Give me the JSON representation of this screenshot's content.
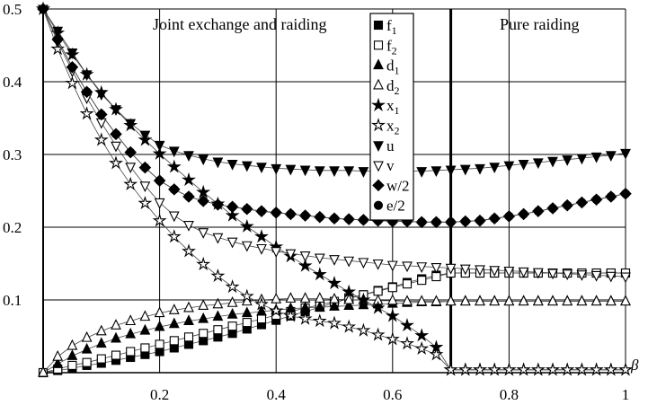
{
  "chart_data": {
    "type": "scatter",
    "xlabel": "β",
    "ylabel": "",
    "xlim": [
      0,
      1
    ],
    "ylim": [
      0,
      0.5
    ],
    "x_ticks": [
      0.2,
      0.4,
      0.6,
      0.8,
      1
    ],
    "x_tick_labels": [
      "0.2",
      "0.4",
      "0.6",
      "0.8",
      "1"
    ],
    "y_ticks": [
      0.1,
      0.2,
      0.3,
      0.4,
      0.5
    ],
    "y_tick_labels": [
      "0.1",
      "0.2",
      "0.3",
      "0.4",
      "0.5"
    ],
    "grid": true,
    "legend_position": "top-center",
    "regions": [
      {
        "label": "Joint exchange and raiding"
      },
      {
        "label": "Pure raiding"
      }
    ],
    "boundary_x": 0.7,
    "x": [
      0.0,
      0.025,
      0.05,
      0.075,
      0.1,
      0.125,
      0.15,
      0.175,
      0.2,
      0.225,
      0.25,
      0.275,
      0.3,
      0.325,
      0.35,
      0.375,
      0.4,
      0.425,
      0.45,
      0.475,
      0.5,
      0.525,
      0.55,
      0.575,
      0.6,
      0.625,
      0.65,
      0.675,
      0.7,
      0.725,
      0.75,
      0.775,
      0.8,
      0.825,
      0.85,
      0.875,
      0.9,
      0.925,
      0.95,
      0.975,
      1.0
    ],
    "series": [
      {
        "name": "f1",
        "marker": "square-filled",
        "values": [
          0,
          0.003,
          0.006,
          0.01,
          0.013,
          0.017,
          0.021,
          0.025,
          0.029,
          0.034,
          0.039,
          0.044,
          0.049,
          0.054,
          0.06,
          0.066,
          0.072,
          0.078,
          0.084,
          0.09,
          0.096,
          0.102,
          0.107,
          0.113,
          0.118,
          0.124,
          0.129,
          0.134,
          0.137,
          0.137,
          0.137,
          0.137,
          0.137,
          0.137,
          0.137,
          0.137,
          0.137,
          0.137,
          0.137,
          0.137,
          0.137
        ]
      },
      {
        "name": "f2",
        "marker": "square-open",
        "values": [
          0,
          0.005,
          0.01,
          0.014,
          0.019,
          0.024,
          0.029,
          0.034,
          0.039,
          0.044,
          0.049,
          0.054,
          0.059,
          0.064,
          0.069,
          0.074,
          0.079,
          0.084,
          0.089,
          0.093,
          0.098,
          0.103,
          0.107,
          0.112,
          0.117,
          0.122,
          0.127,
          0.132,
          0.137,
          0.137,
          0.137,
          0.137,
          0.137,
          0.137,
          0.137,
          0.137,
          0.137,
          0.137,
          0.137,
          0.137,
          0.137
        ]
      },
      {
        "name": "d1",
        "marker": "triangle-up-filled",
        "values": [
          0,
          0.012,
          0.023,
          0.032,
          0.04,
          0.047,
          0.053,
          0.058,
          0.063,
          0.067,
          0.071,
          0.074,
          0.077,
          0.08,
          0.082,
          0.084,
          0.086,
          0.088,
          0.089,
          0.09,
          0.091,
          0.092,
          0.093,
          0.094,
          0.095,
          0.096,
          0.097,
          0.097,
          0.098,
          0.098,
          0.098,
          0.098,
          0.098,
          0.098,
          0.098,
          0.098,
          0.098,
          0.098,
          0.098,
          0.098,
          0.098
        ]
      },
      {
        "name": "d2",
        "marker": "triangle-up-open",
        "values": [
          0,
          0.022,
          0.037,
          0.048,
          0.057,
          0.065,
          0.071,
          0.077,
          0.082,
          0.086,
          0.089,
          0.092,
          0.094,
          0.096,
          0.098,
          0.1,
          0.101,
          0.102,
          0.102,
          0.102,
          0.101,
          0.1,
          0.1,
          0.099,
          0.099,
          0.098,
          0.098,
          0.098,
          0.098,
          0.098,
          0.098,
          0.098,
          0.098,
          0.098,
          0.098,
          0.098,
          0.098,
          0.098,
          0.098,
          0.098,
          0.098
        ]
      },
      {
        "name": "x1",
        "marker": "star-filled",
        "values": [
          0.5,
          0.467,
          0.437,
          0.41,
          0.385,
          0.362,
          0.34,
          0.32,
          0.301,
          0.283,
          0.265,
          0.248,
          0.232,
          0.216,
          0.201,
          0.187,
          0.173,
          0.16,
          0.147,
          0.135,
          0.123,
          0.111,
          0.1,
          0.089,
          0.078,
          0.065,
          0.051,
          0.035,
          0.004,
          0.004,
          0.004,
          0.004,
          0.004,
          0.004,
          0.004,
          0.004,
          0.004,
          0.004,
          0.004,
          0.004,
          0.004
        ]
      },
      {
        "name": "x2",
        "marker": "star-open",
        "values": [
          0.5,
          0.445,
          0.398,
          0.356,
          0.32,
          0.288,
          0.259,
          0.233,
          0.209,
          0.187,
          0.167,
          0.149,
          0.133,
          0.118,
          0.105,
          0.094,
          0.085,
          0.078,
          0.074,
          0.071,
          0.068,
          0.063,
          0.058,
          0.052,
          0.046,
          0.04,
          0.033,
          0.025,
          0.004,
          0.004,
          0.004,
          0.004,
          0.004,
          0.004,
          0.004,
          0.004,
          0.004,
          0.004,
          0.004,
          0.004,
          0.004
        ]
      },
      {
        "name": "u",
        "marker": "triangle-down-filled",
        "values": [
          0.5,
          0.47,
          0.44,
          0.41,
          0.383,
          0.362,
          0.343,
          0.327,
          0.313,
          0.305,
          0.299,
          0.294,
          0.29,
          0.287,
          0.285,
          0.283,
          0.281,
          0.28,
          0.279,
          0.278,
          0.278,
          0.278,
          0.277,
          0.277,
          0.277,
          0.277,
          0.277,
          0.278,
          0.279,
          0.28,
          0.281,
          0.283,
          0.285,
          0.287,
          0.289,
          0.291,
          0.293,
          0.295,
          0.297,
          0.299,
          0.302
        ]
      },
      {
        "name": "v",
        "marker": "triangle-down-open",
        "values": [
          0.5,
          0.455,
          0.415,
          0.378,
          0.344,
          0.312,
          0.283,
          0.257,
          0.234,
          0.216,
          0.203,
          0.193,
          0.186,
          0.18,
          0.175,
          0.171,
          0.167,
          0.164,
          0.161,
          0.158,
          0.156,
          0.154,
          0.152,
          0.15,
          0.148,
          0.147,
          0.146,
          0.145,
          0.144,
          0.143,
          0.142,
          0.141,
          0.14,
          0.139,
          0.138,
          0.137,
          0.136,
          0.135,
          0.134,
          0.133,
          0.132
        ]
      },
      {
        "name": "w/2",
        "marker": "diamond-filled",
        "values": [
          0.5,
          0.458,
          0.42,
          0.386,
          0.355,
          0.328,
          0.303,
          0.282,
          0.264,
          0.252,
          0.242,
          0.236,
          0.231,
          0.228,
          0.225,
          0.222,
          0.22,
          0.218,
          0.216,
          0.214,
          0.212,
          0.211,
          0.21,
          0.209,
          0.208,
          0.208,
          0.207,
          0.207,
          0.207,
          0.208,
          0.209,
          0.212,
          0.215,
          0.218,
          0.222,
          0.226,
          0.23,
          0.234,
          0.238,
          0.242,
          0.246
        ]
      },
      {
        "name": "e/2",
        "marker": "circle-filled",
        "values": [
          0.5,
          0.458,
          0.42,
          0.386,
          0.355,
          0.328,
          0.303,
          0.282,
          0.264,
          0.252,
          0.242,
          0.236,
          0.231,
          0.228,
          0.225,
          0.222,
          0.22,
          0.218,
          0.216,
          0.214,
          0.212,
          0.211,
          0.21,
          0.209,
          0.208,
          0.208,
          0.207,
          0.207,
          0.207,
          0.208,
          0.209,
          0.212,
          0.215,
          0.218,
          0.222,
          0.226,
          0.23,
          0.234,
          0.238,
          0.242,
          0.246
        ]
      }
    ],
    "legend": [
      {
        "label": "f1",
        "base": "f",
        "sub": "1"
      },
      {
        "label": "f2",
        "base": "f",
        "sub": "2"
      },
      {
        "label": "d1",
        "base": "d",
        "sub": "1"
      },
      {
        "label": "d2",
        "base": "d",
        "sub": "2"
      },
      {
        "label": "x1",
        "base": "x",
        "sub": "1"
      },
      {
        "label": "x2",
        "base": "x",
        "sub": "2"
      },
      {
        "label": "u",
        "base": "u",
        "sub": ""
      },
      {
        "label": "v",
        "base": "v",
        "sub": ""
      },
      {
        "label": "w/2",
        "base": "w/2",
        "sub": ""
      },
      {
        "label": "e/2",
        "base": "e/2",
        "sub": ""
      }
    ]
  }
}
